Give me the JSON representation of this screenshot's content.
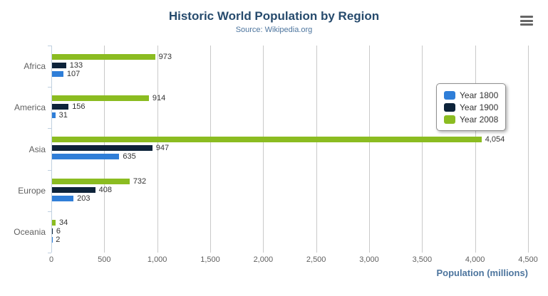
{
  "header": {
    "title": "Historic World Population by Region",
    "subtitle": "Source: Wikipedia.org"
  },
  "context_menu": {
    "icon": "hamburger-menu-icon"
  },
  "chart_data": {
    "type": "bar",
    "orientation": "horizontal",
    "title": "Historic World Population by Region",
    "subtitle": "Source: Wikipedia.org",
    "xlabel": "Population (millions)",
    "ylabel": "",
    "categories": [
      "Africa",
      "America",
      "Asia",
      "Europe",
      "Oceania"
    ],
    "series": [
      {
        "name": "Year 1800",
        "color": "#2f7ed8",
        "values": [
          107,
          31,
          635,
          203,
          2
        ]
      },
      {
        "name": "Year 1900",
        "color": "#0d233a",
        "values": [
          133,
          156,
          947,
          408,
          6
        ]
      },
      {
        "name": "Year 2008",
        "color": "#8bbc21",
        "values": [
          973,
          914,
          4054,
          732,
          34
        ]
      }
    ],
    "bar_order_top_to_bottom": [
      "Year 2008",
      "Year 1900",
      "Year 1800"
    ],
    "xlim": [
      0,
      4500
    ],
    "x_ticks": [
      0,
      500,
      1000,
      1500,
      2000,
      2500,
      3000,
      3500,
      4000,
      4500
    ],
    "grid": true,
    "data_labels": true,
    "legend": {
      "position": "right",
      "entries": [
        "Year 1800",
        "Year 1900",
        "Year 2008"
      ]
    }
  }
}
